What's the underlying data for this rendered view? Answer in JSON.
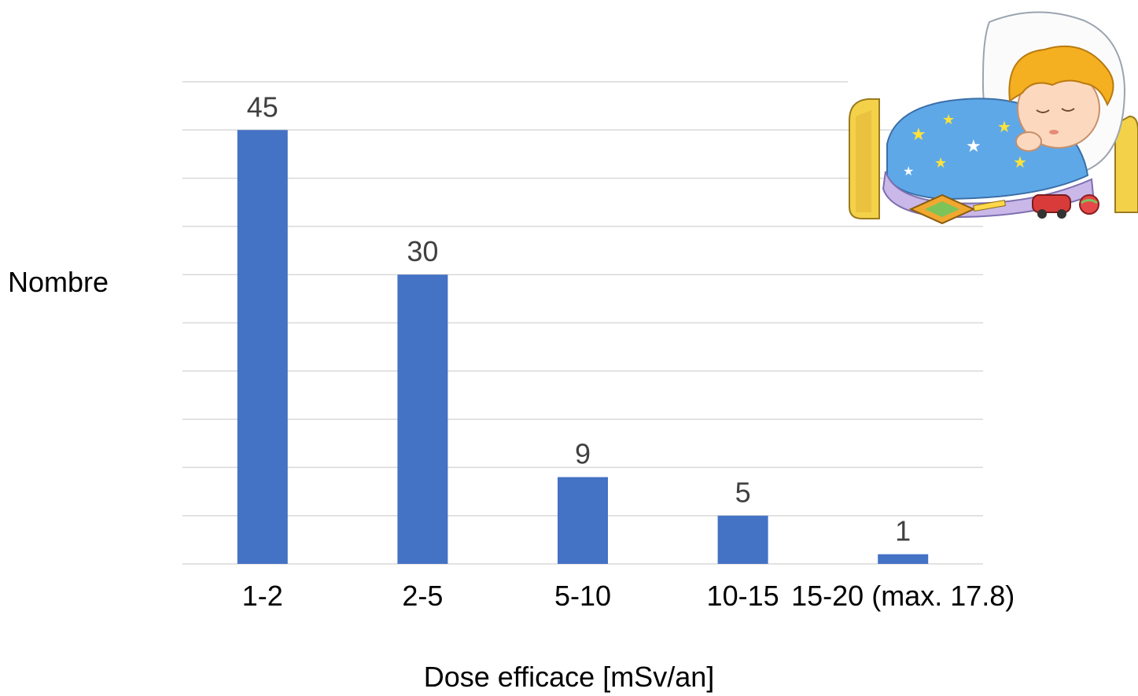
{
  "chart_data": {
    "type": "bar",
    "categories": [
      "1-2",
      "2-5",
      "5-10",
      "10-15",
      "15-20 (max. 17.8)"
    ],
    "values": [
      45,
      30,
      9,
      5,
      1
    ],
    "data_labels": [
      "45",
      "30",
      "9",
      "5",
      "1"
    ],
    "title": "",
    "xlabel": "Dose efficace [mSv/an]",
    "ylabel": "Nombre",
    "ylim": [
      0,
      50
    ],
    "grid": true,
    "y_tick_labels_shown": false,
    "legend": "none",
    "bar_color": "#4472C4",
    "gridline_color": "#D9D9D9",
    "label_color": "#404040"
  },
  "illustration": {
    "icon": "sleeping-child-in-bed-illustration",
    "blanket_color": "#5EA8E8",
    "bed_color": "#F3D24A",
    "hair_color": "#F4B020"
  }
}
